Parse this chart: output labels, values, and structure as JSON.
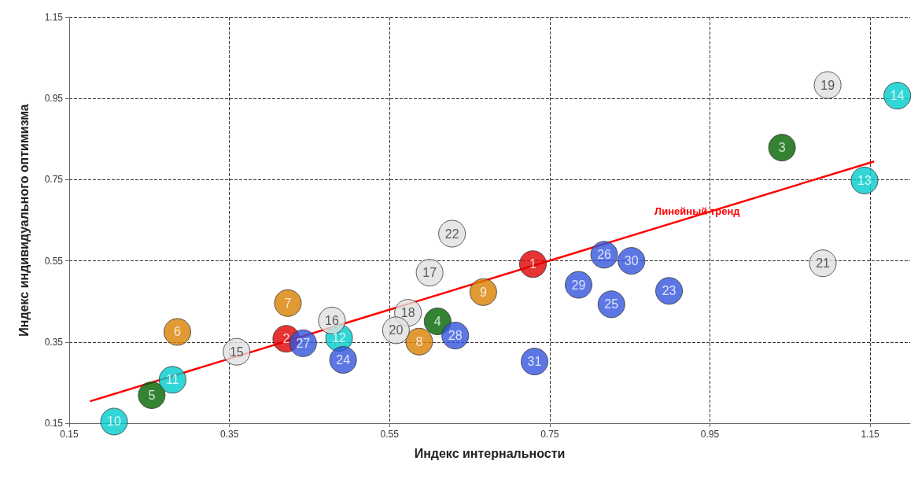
{
  "chart_data": {
    "type": "scatter",
    "xlabel": "Индекс интернальности",
    "ylabel": "Индекс индивидуального оптимизма",
    "xlim": [
      0.15,
      1.2
    ],
    "ylim": [
      0.15,
      1.15
    ],
    "xticks": [
      0.15,
      0.35,
      0.55,
      0.75,
      0.95,
      1.15
    ],
    "yticks": [
      0.15,
      0.35,
      0.55,
      0.75,
      0.95,
      1.15
    ],
    "grid": true,
    "line_style": "dashed",
    "marker": "circle",
    "annotations": [
      {
        "text": "1",
        "x": 0.729,
        "y": 0.542
      },
      {
        "text": "2",
        "x": 0.421,
        "y": 0.358
      },
      {
        "text": "3",
        "x": 1.04,
        "y": 0.829
      },
      {
        "text": "4",
        "x": 0.61,
        "y": 0.401
      },
      {
        "text": "5",
        "x": 0.253,
        "y": 0.219
      },
      {
        "text": "6",
        "x": 0.285,
        "y": 0.375
      },
      {
        "text": "7",
        "x": 0.423,
        "y": 0.446
      },
      {
        "text": "8",
        "x": 0.587,
        "y": 0.351
      },
      {
        "text": "9",
        "x": 0.667,
        "y": 0.473
      },
      {
        "text": "10",
        "x": 0.206,
        "y": 0.154
      },
      {
        "text": "11",
        "x": 0.279,
        "y": 0.257
      },
      {
        "text": "12",
        "x": 0.487,
        "y": 0.36
      },
      {
        "text": "13",
        "x": 1.143,
        "y": 0.748
      },
      {
        "text": "14",
        "x": 1.184,
        "y": 0.957
      },
      {
        "text": "15",
        "x": 0.359,
        "y": 0.326
      },
      {
        "text": "16",
        "x": 0.478,
        "y": 0.403
      },
      {
        "text": "17",
        "x": 0.6,
        "y": 0.521
      },
      {
        "text": "18",
        "x": 0.573,
        "y": 0.422
      },
      {
        "text": "19",
        "x": 1.097,
        "y": 0.983
      },
      {
        "text": "20",
        "x": 0.558,
        "y": 0.379
      },
      {
        "text": "21",
        "x": 1.091,
        "y": 0.544
      },
      {
        "text": "22",
        "x": 0.628,
        "y": 0.617
      },
      {
        "text": "23",
        "x": 0.899,
        "y": 0.476
      },
      {
        "text": "24",
        "x": 0.492,
        "y": 0.306
      },
      {
        "text": "25",
        "x": 0.827,
        "y": 0.443
      },
      {
        "text": "26",
        "x": 0.818,
        "y": 0.565
      },
      {
        "text": "27",
        "x": 0.442,
        "y": 0.347
      },
      {
        "text": "28",
        "x": 0.632,
        "y": 0.366
      },
      {
        "text": "29",
        "x": 0.786,
        "y": 0.491
      },
      {
        "text": "30",
        "x": 0.852,
        "y": 0.55
      },
      {
        "text": "31",
        "x": 0.731,
        "y": 0.302
      }
    ],
    "series": [
      {
        "color": "#e00000",
        "x": [
          0.729,
          0.421
        ],
        "values": [
          0.542,
          0.358
        ]
      },
      {
        "color": "#006400",
        "x": [
          1.04,
          0.61,
          0.253
        ],
        "values": [
          0.829,
          0.401,
          0.219
        ]
      },
      {
        "color": "#d98000",
        "x": [
          0.285,
          0.423,
          0.587,
          0.667
        ],
        "values": [
          0.375,
          0.446,
          0.351,
          0.473
        ]
      },
      {
        "color": "#00cccc",
        "x": [
          0.206,
          0.279,
          0.487,
          1.143,
          1.184
        ],
        "values": [
          0.154,
          0.257,
          0.36,
          0.748,
          0.957
        ]
      },
      {
        "color": "#e0e0e0",
        "x": [
          0.359,
          0.478,
          0.6,
          0.573,
          1.097,
          0.558,
          1.091,
          0.628
        ],
        "values": [
          0.326,
          0.403,
          0.521,
          0.422,
          0.983,
          0.379,
          0.544,
          0.617
        ]
      },
      {
        "color": "#3355dd",
        "x": [
          0.899,
          0.492,
          0.827,
          0.818,
          0.442,
          0.632,
          0.786,
          0.852,
          0.731
        ],
        "values": [
          0.476,
          0.306,
          0.443,
          0.565,
          0.347,
          0.366,
          0.491,
          0.55,
          0.302
        ]
      },
      {
        "type": "line",
        "name": "Линейный тренд",
        "color": "#ff0000",
        "marker": "none",
        "line_style": "solid",
        "x": [
          0.176,
          1.155
        ],
        "values": [
          0.204,
          0.795
        ]
      }
    ]
  }
}
